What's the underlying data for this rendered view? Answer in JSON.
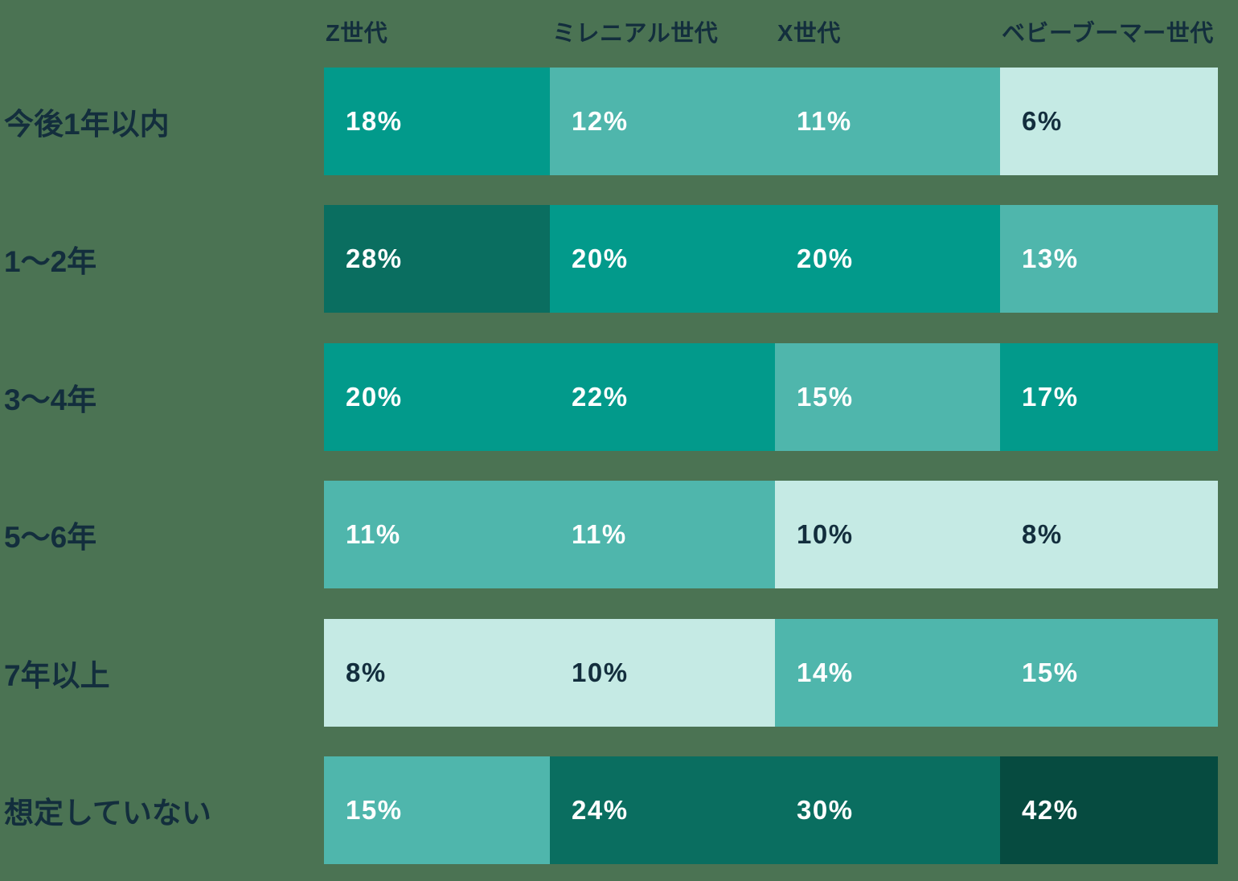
{
  "chart_data": {
    "type": "heatmap",
    "title": "",
    "columns": [
      "Z世代",
      "ミレニアル世代",
      "X世代",
      "ベビーブーマー世代"
    ],
    "rows": [
      {
        "label": "今後1年以内",
        "values": [
          18,
          12,
          11,
          6
        ]
      },
      {
        "label": "1〜2年",
        "values": [
          28,
          20,
          20,
          13
        ]
      },
      {
        "label": "3〜4年",
        "values": [
          20,
          22,
          15,
          17
        ]
      },
      {
        "label": "5〜6年",
        "values": [
          11,
          11,
          10,
          8
        ]
      },
      {
        "label": "7年以上",
        "values": [
          8,
          10,
          14,
          15
        ]
      },
      {
        "label": "想定していない",
        "values": [
          15,
          24,
          30,
          42
        ]
      }
    ],
    "value_suffix": "%",
    "value_range": [
      6,
      42
    ],
    "legend": "none",
    "grid": "off",
    "color_scale": [
      {
        "max": 10,
        "bg": "#C5EAE4",
        "text": "#132E3D"
      },
      {
        "max": 15,
        "bg": "#4FB6AC",
        "text": "#FFFFFF"
      },
      {
        "max": 22,
        "bg": "#029A8B",
        "text": "#FFFFFF"
      },
      {
        "max": 31,
        "bg": "#0A6E60",
        "text": "#FFFFFF"
      },
      {
        "max": 100,
        "bg": "#064B40",
        "text": "#FFFFFF"
      }
    ],
    "colors": {
      "background": "#4B7353",
      "header_text": "#132E3D",
      "row_label_text": "#132E3D"
    }
  }
}
